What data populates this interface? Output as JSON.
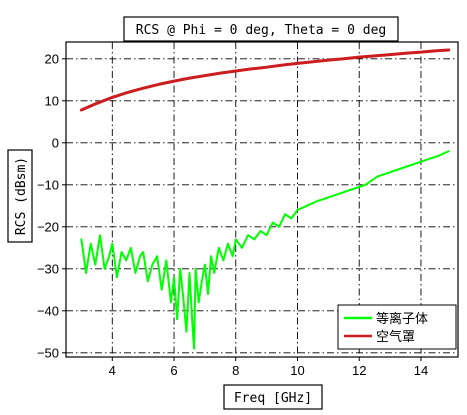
{
  "chart_data": {
    "type": "line",
    "title": "RCS @ Phi = 0 deg, Theta = 0 deg",
    "xlabel": "Freq [GHz]",
    "ylabel": "RCS (dBsm)",
    "xlim": [
      2.5,
      15.2
    ],
    "ylim": [
      -51,
      24
    ],
    "xticks": [
      4,
      6,
      8,
      10,
      12,
      14
    ],
    "yticks": [
      20,
      10,
      0,
      -10,
      -20,
      -30,
      -40,
      -50
    ],
    "grid": true,
    "legend_position": "bottom-right",
    "series": [
      {
        "name": "等离子体",
        "color": "#00ff00",
        "x": [
          3.0,
          3.15,
          3.3,
          3.45,
          3.6,
          3.75,
          3.9,
          4.0,
          4.15,
          4.3,
          4.45,
          4.6,
          4.75,
          4.9,
          5.0,
          5.15,
          5.3,
          5.45,
          5.6,
          5.75,
          5.9,
          6.0,
          6.1,
          6.2,
          6.3,
          6.4,
          6.5,
          6.6,
          6.65,
          6.7,
          6.8,
          6.9,
          7.0,
          7.1,
          7.2,
          7.3,
          7.45,
          7.6,
          7.75,
          7.9,
          8.0,
          8.2,
          8.4,
          8.6,
          8.8,
          9.0,
          9.2,
          9.4,
          9.6,
          9.8,
          10.0,
          10.3,
          10.6,
          11.0,
          11.4,
          11.8,
          12.2,
          12.6,
          13.0,
          13.4,
          13.8,
          14.2,
          14.6,
          14.9
        ],
        "values": [
          -23,
          -31,
          -24,
          -29,
          -22,
          -30,
          -27,
          -24,
          -32,
          -26,
          -28,
          -25,
          -31,
          -27,
          -26,
          -33,
          -29,
          -27,
          -35,
          -28,
          -38,
          -32,
          -42,
          -30,
          -37,
          -45,
          -31,
          -44,
          -49,
          -30,
          -38,
          -33,
          -29,
          -36,
          -27,
          -31,
          -25,
          -28,
          -24,
          -27,
          -23,
          -25,
          -22,
          -23,
          -21,
          -22,
          -19,
          -20,
          -17,
          -18,
          -16,
          -15,
          -14,
          -13,
          -12,
          -11,
          -10,
          -8,
          -7,
          -6,
          -5,
          -4,
          -3,
          -2
        ]
      },
      {
        "name": "空气罩",
        "color": "#cc1e1e",
        "x": [
          3.0,
          3.5,
          4.0,
          4.5,
          5.0,
          5.5,
          6.0,
          6.5,
          7.0,
          7.5,
          8.0,
          8.5,
          9.0,
          9.5,
          10.0,
          10.5,
          11.0,
          11.5,
          12.0,
          12.5,
          13.0,
          13.5,
          14.0,
          14.5,
          14.9
        ],
        "values": [
          7.8,
          9.4,
          10.8,
          12.0,
          13.0,
          13.9,
          14.7,
          15.4,
          16.0,
          16.6,
          17.1,
          17.6,
          18.0,
          18.5,
          18.9,
          19.3,
          19.7,
          20.0,
          20.4,
          20.7,
          21.0,
          21.3,
          21.6,
          21.9,
          22.1
        ]
      }
    ]
  }
}
